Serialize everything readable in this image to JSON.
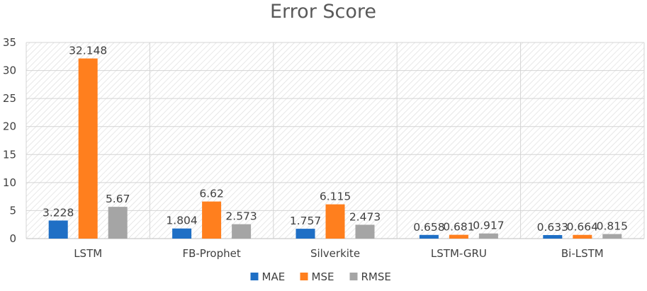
{
  "chart_data": {
    "type": "bar",
    "title": "Error Score",
    "xlabel": "",
    "ylabel": "",
    "categories": [
      "LSTM",
      "FB-Prophet",
      "Silverkite",
      "LSTM-GRU",
      "Bi-LSTM"
    ],
    "series": [
      {
        "name": "MAE",
        "color": "#1f6fc5",
        "values": [
          3.228,
          1.804,
          1.757,
          0.658,
          0.633
        ],
        "labels": [
          "3.228",
          "1.804",
          "1.757",
          "0.658",
          "0.633"
        ]
      },
      {
        "name": "MSE",
        "color": "#ff7f1e",
        "values": [
          32.148,
          6.62,
          6.115,
          0.681,
          0.664
        ],
        "labels": [
          "32.148",
          "6.62",
          "6.115",
          "0.681",
          "0.664"
        ]
      },
      {
        "name": "RMSE",
        "color": "#a5a5a5",
        "values": [
          5.67,
          2.573,
          2.473,
          0.917,
          0.815
        ],
        "labels": [
          "5.67",
          "2.573",
          "2.473",
          "0.917",
          "0.815"
        ]
      }
    ],
    "ylim": [
      0,
      35
    ],
    "yticks": [
      0,
      5,
      10,
      15,
      20,
      25,
      30,
      35
    ],
    "grid": true,
    "legend": "bottom"
  }
}
